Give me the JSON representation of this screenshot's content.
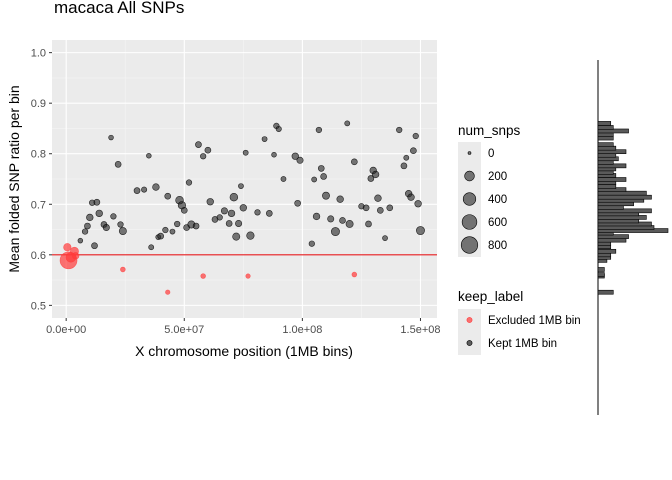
{
  "chart_data": {
    "type": "scatter",
    "title": "macaca All SNPs",
    "xlabel": "X chromosome position (1MB bins)",
    "ylabel": "Mean folded SNP ratio per bin",
    "xlim": [
      -6000000,
      157000000
    ],
    "ylim": [
      0.475,
      1.025
    ],
    "x_ticks": [
      0,
      50000000,
      100000000,
      150000000
    ],
    "x_tick_labels": [
      "0.0e+00",
      "5.0e+07",
      "1.0e+08",
      "1.5e+08"
    ],
    "y_ticks": [
      0.5,
      0.6,
      0.7,
      0.8,
      0.9,
      1.0
    ],
    "y_tick_labels": [
      "0.5",
      "0.6",
      "0.7",
      "0.8",
      "0.9",
      "1.0"
    ],
    "grid": true,
    "hline": {
      "y": 0.6,
      "color": "#e41a1c"
    },
    "colors": {
      "Excluded 1MB bin": "#ff3b3b",
      "Kept 1MB bin": "#222222"
    },
    "legends": {
      "size": {
        "title": "num_snps",
        "labels": [
          "0",
          "200",
          "400",
          "600",
          "800"
        ],
        "values": [
          0,
          200,
          400,
          600,
          800
        ]
      },
      "color": {
        "title": "keep_label",
        "labels": [
          "Excluded 1MB bin",
          "Kept 1MB bin"
        ]
      }
    },
    "series": [
      {
        "name": "Excluded 1MB bin",
        "points": [
          [
            500000,
            0.615,
            90
          ],
          [
            1000000,
            0.589,
            850
          ],
          [
            2000000,
            0.595,
            200
          ],
          [
            3500000,
            0.607,
            120
          ],
          [
            4000000,
            0.598,
            60
          ],
          [
            24000000,
            0.571,
            15
          ],
          [
            43000000,
            0.526,
            10
          ],
          [
            58000000,
            0.558,
            15
          ],
          [
            77000000,
            0.558,
            10
          ],
          [
            122000000,
            0.561,
            15
          ]
        ]
      },
      {
        "name": "Kept 1MB bin",
        "points": [
          [
            6000000,
            0.628,
            15
          ],
          [
            8000000,
            0.646,
            30
          ],
          [
            9000000,
            0.657,
            40
          ],
          [
            10000000,
            0.674,
            60
          ],
          [
            11000000,
            0.703,
            30
          ],
          [
            12000000,
            0.618,
            40
          ],
          [
            13000000,
            0.704,
            40
          ],
          [
            14000000,
            0.682,
            60
          ],
          [
            16000000,
            0.66,
            40
          ],
          [
            17000000,
            0.654,
            50
          ],
          [
            19000000,
            0.832,
            15
          ],
          [
            20000000,
            0.676,
            30
          ],
          [
            22000000,
            0.779,
            40
          ],
          [
            23000000,
            0.66,
            30
          ],
          [
            24000000,
            0.647,
            80
          ],
          [
            30000000,
            0.727,
            40
          ],
          [
            33000000,
            0.729,
            25
          ],
          [
            35000000,
            0.796,
            15
          ],
          [
            36000000,
            0.615,
            20
          ],
          [
            38000000,
            0.734,
            60
          ],
          [
            39000000,
            0.635,
            20
          ],
          [
            40000000,
            0.637,
            40
          ],
          [
            42000000,
            0.649,
            30
          ],
          [
            43000000,
            0.716,
            40
          ],
          [
            45000000,
            0.646,
            20
          ],
          [
            47000000,
            0.661,
            30
          ],
          [
            48000000,
            0.708,
            100
          ],
          [
            49000000,
            0.698,
            90
          ],
          [
            50000000,
            0.688,
            40
          ],
          [
            51000000,
            0.654,
            40
          ],
          [
            52000000,
            0.743,
            30
          ],
          [
            53000000,
            0.66,
            80
          ],
          [
            55000000,
            0.657,
            40
          ],
          [
            56000000,
            0.818,
            40
          ],
          [
            58000000,
            0.795,
            30
          ],
          [
            60000000,
            0.807,
            40
          ],
          [
            61000000,
            0.705,
            60
          ],
          [
            63000000,
            0.67,
            40
          ],
          [
            65000000,
            0.674,
            30
          ],
          [
            67000000,
            0.687,
            50
          ],
          [
            69000000,
            0.662,
            40
          ],
          [
            70000000,
            0.682,
            60
          ],
          [
            71000000,
            0.714,
            100
          ],
          [
            72000000,
            0.636,
            80
          ],
          [
            73000000,
            0.662,
            50
          ],
          [
            74000000,
            0.736,
            20
          ],
          [
            75000000,
            0.693,
            60
          ],
          [
            76000000,
            0.802,
            20
          ],
          [
            78000000,
            0.638,
            90
          ],
          [
            81000000,
            0.684,
            30
          ],
          [
            84000000,
            0.829,
            20
          ],
          [
            86000000,
            0.682,
            40
          ],
          [
            88000000,
            0.798,
            15
          ],
          [
            89000000,
            0.855,
            30
          ],
          [
            90000000,
            0.849,
            25
          ],
          [
            92000000,
            0.75,
            20
          ],
          [
            97000000,
            0.795,
            60
          ],
          [
            98000000,
            0.702,
            40
          ],
          [
            99000000,
            0.787,
            50
          ],
          [
            104000000,
            0.622,
            30
          ],
          [
            105000000,
            0.749,
            20
          ],
          [
            106000000,
            0.676,
            60
          ],
          [
            107000000,
            0.847,
            30
          ],
          [
            108000000,
            0.771,
            40
          ],
          [
            109000000,
            0.755,
            40
          ],
          [
            110000000,
            0.717,
            80
          ],
          [
            112000000,
            0.671,
            50
          ],
          [
            114000000,
            0.646,
            120
          ],
          [
            116000000,
            0.71,
            60
          ],
          [
            117000000,
            0.668,
            40
          ],
          [
            119000000,
            0.86,
            20
          ],
          [
            120000000,
            0.661,
            80
          ],
          [
            122000000,
            0.784,
            40
          ],
          [
            125000000,
            0.696,
            30
          ],
          [
            127000000,
            0.693,
            40
          ],
          [
            128000000,
            0.661,
            40
          ],
          [
            129000000,
            0.751,
            40
          ],
          [
            130000000,
            0.767,
            60
          ],
          [
            131000000,
            0.759,
            60
          ],
          [
            132000000,
            0.712,
            60
          ],
          [
            133000000,
            0.688,
            40
          ],
          [
            135000000,
            0.633,
            20
          ],
          [
            137000000,
            0.693,
            40
          ],
          [
            141000000,
            0.847,
            30
          ],
          [
            143000000,
            0.776,
            40
          ],
          [
            144000000,
            0.792,
            20
          ],
          [
            145000000,
            0.721,
            60
          ],
          [
            146000000,
            0.714,
            60
          ],
          [
            147000000,
            0.806,
            40
          ],
          [
            148000000,
            0.835,
            30
          ],
          [
            149000000,
            0.701,
            60
          ],
          [
            150000000,
            0.648,
            120
          ]
        ]
      }
    ],
    "histogram": {
      "orientation": "horizontal",
      "bins": [
        [
          0.526,
          12
        ],
        [
          0.558,
          5
        ],
        [
          0.561,
          5
        ],
        [
          0.571,
          5
        ],
        [
          0.589,
          7
        ],
        [
          0.595,
          10
        ],
        [
          0.6,
          10
        ],
        [
          0.607,
          14
        ],
        [
          0.616,
          10
        ],
        [
          0.622,
          10
        ],
        [
          0.629,
          22
        ],
        [
          0.636,
          24
        ],
        [
          0.643,
          12
        ],
        [
          0.648,
          55
        ],
        [
          0.654,
          44
        ],
        [
          0.661,
          42
        ],
        [
          0.667,
          32
        ],
        [
          0.674,
          38
        ],
        [
          0.681,
          32
        ],
        [
          0.687,
          42
        ],
        [
          0.694,
          20
        ],
        [
          0.701,
          28
        ],
        [
          0.708,
          36
        ],
        [
          0.714,
          42
        ],
        [
          0.722,
          38
        ],
        [
          0.729,
          22
        ],
        [
          0.735,
          14
        ],
        [
          0.743,
          14
        ],
        [
          0.749,
          22
        ],
        [
          0.757,
          14
        ],
        [
          0.763,
          12
        ],
        [
          0.77,
          14
        ],
        [
          0.776,
          22
        ],
        [
          0.783,
          12
        ],
        [
          0.79,
          16
        ],
        [
          0.797,
          14
        ],
        [
          0.804,
          22
        ],
        [
          0.811,
          14
        ],
        [
          0.818,
          12
        ],
        [
          0.831,
          12
        ],
        [
          0.838,
          12
        ],
        [
          0.845,
          24
        ],
        [
          0.852,
          12
        ],
        [
          0.86,
          10
        ]
      ]
    }
  }
}
